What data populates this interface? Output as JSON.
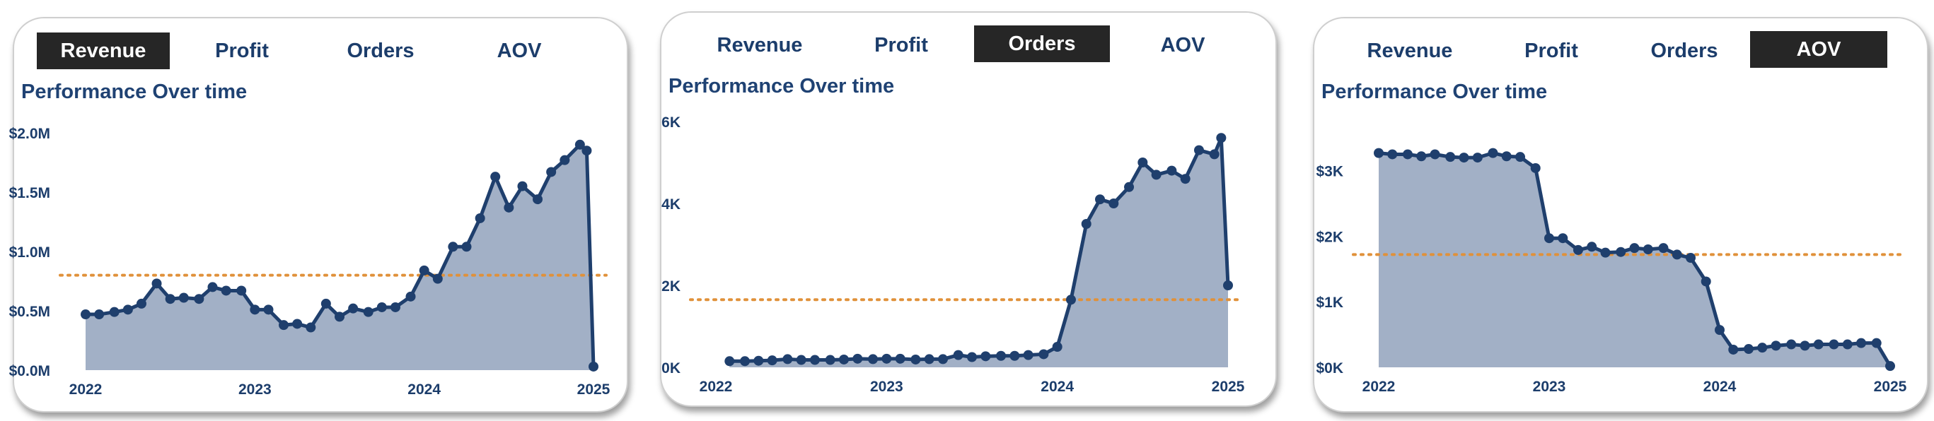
{
  "tabs": [
    "Revenue",
    "Profit",
    "Orders",
    "AOV"
  ],
  "panels": [
    {
      "active_tab": "Revenue",
      "title": "Performance Over time"
    },
    {
      "active_tab": "Orders",
      "title": "Performance Over time"
    },
    {
      "active_tab": "AOV",
      "title": "Performance Over time"
    }
  ],
  "colors": {
    "line": "#1f3f6d",
    "area": "#a2b0c6",
    "reference": "#e0913a",
    "tab_active_bg": "#262626",
    "text": "#1c3d6b"
  },
  "chart_data": [
    {
      "type": "area",
      "title": "Performance Over time",
      "xlabel": "",
      "ylabel": "",
      "x_ticks": [
        "2022",
        "2023",
        "2024",
        "2025"
      ],
      "x_tick_positions": [
        2022,
        2023,
        2024,
        2025
      ],
      "x_range": [
        2022,
        2025
      ],
      "y_ticks": [
        "$0.0M",
        "$0.5M",
        "$1.0M",
        "$1.5M",
        "$2.0M"
      ],
      "y_tick_values": [
        0,
        0.5,
        1.0,
        1.5,
        2.0
      ],
      "ylim": [
        0,
        2.0
      ],
      "reference_line": 0.8,
      "grid": false,
      "series": [
        {
          "x": [
            2022.0,
            2022.08,
            2022.17,
            2022.25,
            2022.33,
            2022.42,
            2022.5,
            2022.58,
            2022.67,
            2022.75,
            2022.83,
            2022.92,
            2023.0,
            2023.08,
            2023.17,
            2023.25,
            2023.33,
            2023.42,
            2023.5,
            2023.58,
            2023.67,
            2023.75,
            2023.83,
            2023.92,
            2024.0,
            2024.08,
            2024.17,
            2024.25,
            2024.33,
            2024.42,
            2024.5,
            2024.58,
            2024.67,
            2024.75,
            2024.83,
            2024.92,
            2024.96,
            2025.0
          ],
          "values": [
            0.47,
            0.47,
            0.49,
            0.51,
            0.56,
            0.73,
            0.6,
            0.61,
            0.6,
            0.7,
            0.67,
            0.67,
            0.51,
            0.51,
            0.38,
            0.39,
            0.36,
            0.56,
            0.45,
            0.52,
            0.49,
            0.53,
            0.53,
            0.62,
            0.84,
            0.77,
            1.04,
            1.04,
            1.28,
            1.63,
            1.37,
            1.55,
            1.44,
            1.67,
            1.77,
            1.9,
            1.85,
            0.03
          ]
        }
      ]
    },
    {
      "type": "area",
      "title": "Performance Over time",
      "xlabel": "",
      "ylabel": "",
      "x_ticks": [
        "2022",
        "2023",
        "2024",
        "2025"
      ],
      "x_tick_positions": [
        2022,
        2023,
        2024,
        2025
      ],
      "x_range": [
        2022,
        2025
      ],
      "y_ticks": [
        "0K",
        "2K",
        "4K",
        "6K"
      ],
      "y_tick_values": [
        0,
        2,
        4,
        6
      ],
      "ylim": [
        0,
        6
      ],
      "reference_line": 1.65,
      "grid": false,
      "series": [
        {
          "x": [
            2022.08,
            2022.17,
            2022.25,
            2022.33,
            2022.42,
            2022.5,
            2022.58,
            2022.67,
            2022.75,
            2022.83,
            2022.92,
            2023.0,
            2023.08,
            2023.17,
            2023.25,
            2023.33,
            2023.42,
            2023.5,
            2023.58,
            2023.67,
            2023.75,
            2023.83,
            2023.92,
            2024.0,
            2024.08,
            2024.17,
            2024.25,
            2024.33,
            2024.42,
            2024.5,
            2024.58,
            2024.67,
            2024.75,
            2024.83,
            2024.92,
            2024.96,
            2025.0
          ],
          "values": [
            0.15,
            0.15,
            0.16,
            0.17,
            0.2,
            0.18,
            0.18,
            0.18,
            0.19,
            0.21,
            0.2,
            0.21,
            0.21,
            0.19,
            0.2,
            0.2,
            0.3,
            0.25,
            0.27,
            0.28,
            0.28,
            0.3,
            0.32,
            0.5,
            1.65,
            3.5,
            4.1,
            4.0,
            4.4,
            5.0,
            4.7,
            4.8,
            4.6,
            5.3,
            5.2,
            5.6,
            2.0
          ]
        }
      ]
    },
    {
      "type": "area",
      "title": "Performance Over time",
      "xlabel": "",
      "ylabel": "",
      "x_ticks": [
        "2022",
        "2023",
        "2024",
        "2025"
      ],
      "x_tick_positions": [
        2022,
        2023,
        2024,
        2025
      ],
      "x_range": [
        2022,
        2025
      ],
      "y_ticks": [
        "$0K",
        "$1K",
        "$2K",
        "$3K"
      ],
      "y_tick_values": [
        0,
        1,
        2,
        3
      ],
      "ylim": [
        0,
        3.6
      ],
      "reference_line": 1.72,
      "grid": false,
      "series": [
        {
          "x": [
            2022.0,
            2022.08,
            2022.17,
            2022.25,
            2022.33,
            2022.42,
            2022.5,
            2022.58,
            2022.67,
            2022.75,
            2022.83,
            2022.92,
            2023.0,
            2023.08,
            2023.17,
            2023.25,
            2023.33,
            2023.42,
            2023.5,
            2023.58,
            2023.67,
            2023.75,
            2023.83,
            2023.92,
            2024.0,
            2024.08,
            2024.17,
            2024.25,
            2024.33,
            2024.42,
            2024.5,
            2024.58,
            2024.67,
            2024.75,
            2024.83,
            2024.92,
            2025.0
          ],
          "values": [
            3.27,
            3.25,
            3.25,
            3.22,
            3.25,
            3.21,
            3.2,
            3.2,
            3.27,
            3.22,
            3.21,
            3.04,
            1.97,
            1.97,
            1.79,
            1.84,
            1.75,
            1.76,
            1.82,
            1.8,
            1.82,
            1.72,
            1.67,
            1.31,
            0.57,
            0.27,
            0.28,
            0.3,
            0.33,
            0.35,
            0.33,
            0.35,
            0.35,
            0.35,
            0.37,
            0.37,
            0.02
          ]
        }
      ]
    }
  ]
}
